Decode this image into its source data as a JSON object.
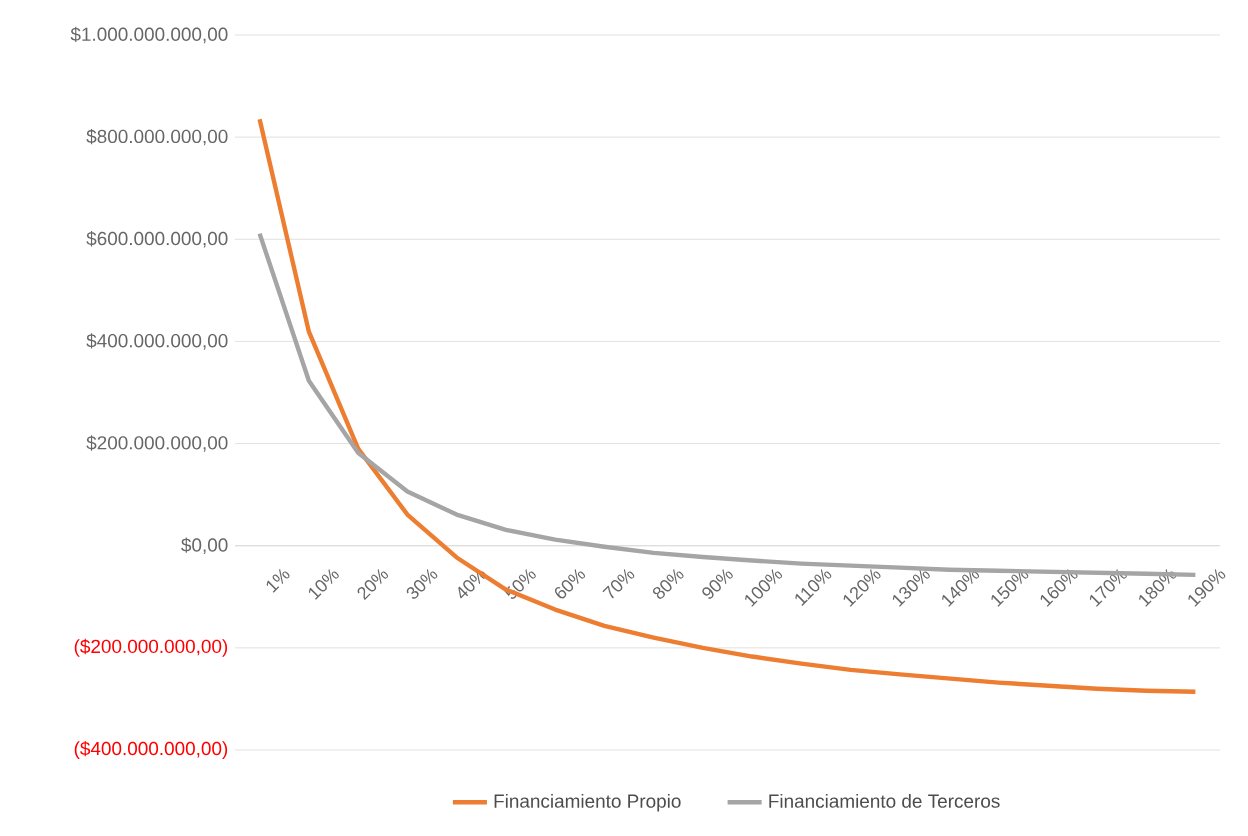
{
  "chart_data": {
    "type": "line",
    "categories": [
      "1%",
      "10%",
      "20%",
      "30%",
      "40%",
      "50%",
      "60%",
      "70%",
      "80%",
      "90%",
      "100%",
      "110%",
      "120%",
      "130%",
      "140%",
      "150%",
      "160%",
      "170%",
      "180%",
      "190%"
    ],
    "series": [
      {
        "name": "Financiamiento Propio",
        "color": "#ed7d31",
        "values": [
          835000000,
          419000000,
          190000000,
          61000000,
          -23000000,
          -86000000,
          -125000000,
          -157000000,
          -180000000,
          -200000000,
          -217000000,
          -231000000,
          -243000000,
          -252000000,
          -260000000,
          -268000000,
          -274000000,
          -280000000,
          -284000000,
          -286000000
        ]
      },
      {
        "name": "Financiamiento de Terceros",
        "color": "#a5a5a5",
        "values": [
          611000000,
          323000000,
          182000000,
          106000000,
          61000000,
          31000000,
          12000000,
          -2000000,
          -14000000,
          -22000000,
          -29000000,
          -35000000,
          -39000000,
          -43000000,
          -47000000,
          -49000000,
          -51000000,
          -53000000,
          -55000000,
          -57000000
        ]
      }
    ],
    "ylim": [
      -400000000,
      1000000000
    ],
    "yticks": [
      {
        "value": -400000000,
        "label": "($400.000.000,00)"
      },
      {
        "value": -200000000,
        "label": "($200.000.000,00)"
      },
      {
        "value": 0,
        "label": "$0,00"
      },
      {
        "value": 200000000,
        "label": "$200.000.000,00"
      },
      {
        "value": 400000000,
        "label": "$400.000.000,00"
      },
      {
        "value": 600000000,
        "label": "$600.000.000,00"
      },
      {
        "value": 800000000,
        "label": "$800.000.000,00"
      },
      {
        "value": 1000000000,
        "label": "$1.000.000.000,00"
      }
    ],
    "grid": "y",
    "legend": "bottom",
    "marker": "none",
    "line_style": "solid"
  }
}
